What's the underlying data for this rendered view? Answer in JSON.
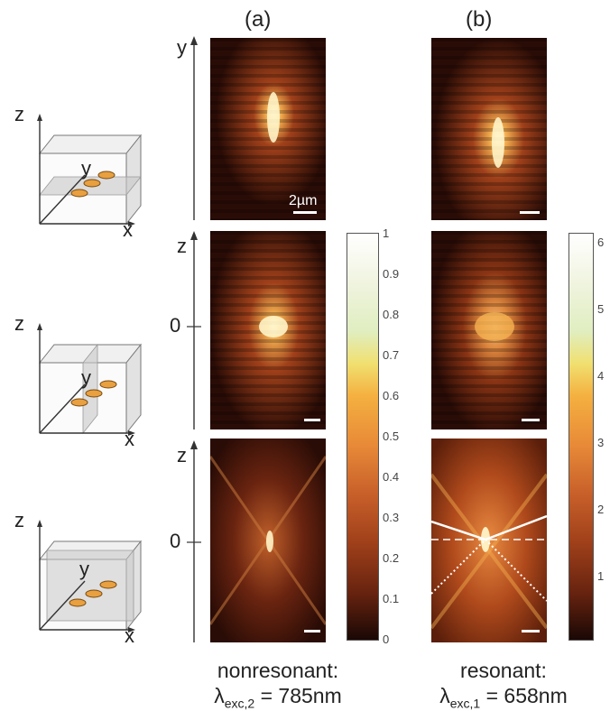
{
  "labels": {
    "col_a": "(a)",
    "col_b": "(b)",
    "axis_y": "y",
    "axis_z": "z",
    "axis_x": "x",
    "zero": "0",
    "scale": "2µm"
  },
  "captions": {
    "a_line1": "nonresonant:",
    "a_lambda": "λ",
    "a_sub": "exc,2",
    "a_value": " = 785nm",
    "b_line1": "resonant:",
    "b_lambda": "λ",
    "b_sub": "exc,1",
    "b_value": " = 658nm"
  },
  "colorbar_a": {
    "min": 0,
    "max": 1,
    "ticks": [
      "1",
      "0.9",
      "0.8",
      "0.7",
      "0.6",
      "0.5",
      "0.4",
      "0.3",
      "0.2",
      "0.1",
      "0"
    ]
  },
  "colorbar_b": {
    "min": 0,
    "max": 6,
    "ticks": [
      "6",
      "5",
      "4",
      "3",
      "2",
      "1"
    ]
  },
  "colors": {
    "map_dark": "#1a0805",
    "map_mid": "#a0401a",
    "map_bright": "#f4b050",
    "map_peak": "#fff8e0",
    "cube_plane": "#d0d0d0",
    "particle": "#e8a040"
  }
}
